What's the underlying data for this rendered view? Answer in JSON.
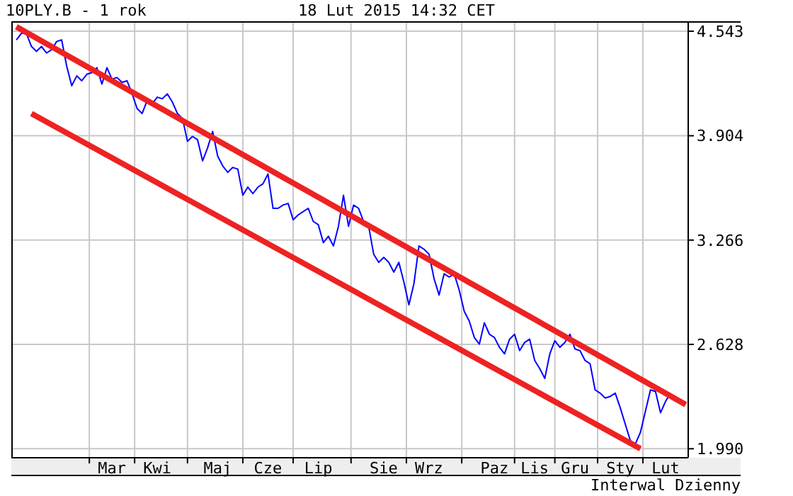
{
  "chart_data": {
    "type": "line",
    "title": "10PLY.B - 1 rok",
    "subtitle": "18 Lut 2015 14:32 CET",
    "annotations": [
      "Interwal Dzienny"
    ],
    "categories": [
      null,
      null,
      null,
      null,
      null,
      null,
      null,
      null,
      null,
      null,
      null,
      null,
      null,
      null,
      null,
      null,
      null,
      null,
      null,
      "Mar",
      null,
      null,
      null,
      null,
      null,
      null,
      null,
      null,
      "Kwi",
      null,
      null,
      null,
      null,
      null,
      null,
      null,
      null,
      null,
      null,
      null,
      "Maj",
      null,
      null,
      null,
      null,
      null,
      null,
      null,
      null,
      null,
      "Cze",
      null,
      null,
      null,
      null,
      null,
      null,
      null,
      null,
      null,
      "Lip",
      null,
      null,
      null,
      null,
      null,
      null,
      null,
      null,
      null,
      null,
      null,
      null,
      "Sie",
      null,
      null,
      null,
      null,
      null,
      null,
      null,
      null,
      "Wrz",
      null,
      null,
      null,
      null,
      null,
      null,
      null,
      null,
      null,
      null,
      null,
      null,
      "Paz",
      null,
      null,
      null,
      null,
      null,
      null,
      null,
      "Lis",
      null,
      null,
      null,
      null,
      null,
      null,
      null,
      "Gru",
      null,
      null,
      null,
      null,
      null,
      null,
      null,
      null,
      "Sty",
      null,
      null,
      null,
      null,
      null,
      null,
      null,
      null,
      "Lut",
      null,
      null,
      null,
      null
    ],
    "series": [
      {
        "color": "#0000ff",
        "values": [
          4.49,
          4.53,
          4.53,
          4.45,
          4.42,
          4.45,
          4.41,
          4.43,
          4.48,
          4.49,
          4.33,
          4.21,
          4.27,
          4.24,
          4.28,
          4.29,
          4.32,
          4.22,
          4.32,
          4.25,
          4.26,
          4.23,
          4.24,
          4.16,
          4.07,
          4.04,
          4.12,
          4.1,
          4.14,
          4.13,
          4.16,
          4.11,
          4.04,
          4.01,
          3.87,
          3.9,
          3.88,
          3.75,
          3.83,
          3.93,
          3.78,
          3.72,
          3.68,
          3.71,
          3.7,
          3.54,
          3.59,
          3.55,
          3.59,
          3.61,
          3.67,
          3.46,
          3.46,
          3.48,
          3.49,
          3.39,
          3.42,
          3.44,
          3.46,
          3.38,
          3.36,
          3.25,
          3.29,
          3.23,
          3.35,
          3.54,
          3.35,
          3.48,
          3.46,
          3.38,
          3.35,
          3.18,
          3.13,
          3.16,
          3.13,
          3.07,
          3.13,
          3.01,
          2.87,
          3.0,
          3.23,
          3.21,
          3.18,
          3.03,
          2.93,
          3.06,
          3.04,
          3.06,
          2.96,
          2.83,
          2.77,
          2.67,
          2.63,
          2.76,
          2.69,
          2.67,
          2.61,
          2.57,
          2.66,
          2.69,
          2.59,
          2.64,
          2.66,
          2.53,
          2.48,
          2.42,
          2.57,
          2.65,
          2.61,
          2.64,
          2.69,
          2.6,
          2.59,
          2.53,
          2.51,
          2.35,
          2.33,
          2.3,
          2.31,
          2.33,
          2.24,
          2.14,
          2.04,
          2.02,
          2.09,
          2.22,
          2.35,
          2.34,
          2.21,
          2.28,
          2.33,
          null,
          null,
          null
        ]
      },
      {
        "type": "line",
        "color": "#ee2222",
        "values": [
          4.57,
          null,
          null,
          null,
          null,
          null,
          null,
          null,
          null,
          null,
          null,
          null,
          null,
          null,
          null,
          null,
          null,
          null,
          null,
          null,
          null,
          null,
          null,
          null,
          null,
          null,
          null,
          null,
          null,
          null,
          null,
          null,
          null,
          null,
          null,
          null,
          null,
          null,
          null,
          null,
          null,
          null,
          null,
          null,
          null,
          null,
          null,
          null,
          null,
          null,
          null,
          null,
          null,
          null,
          null,
          null,
          null,
          null,
          null,
          null,
          null,
          null,
          null,
          null,
          null,
          null,
          null,
          null,
          null,
          null,
          null,
          null,
          null,
          null,
          null,
          null,
          null,
          null,
          null,
          null,
          null,
          null,
          null,
          null,
          null,
          null,
          null,
          null,
          null,
          null,
          null,
          null,
          null,
          null,
          null,
          null,
          null,
          null,
          null,
          null,
          null,
          null,
          null,
          null,
          null,
          null,
          null,
          null,
          null,
          null,
          null,
          null,
          null,
          null,
          null,
          null,
          null,
          null,
          null,
          null,
          null,
          null,
          null,
          null,
          null,
          null,
          null,
          null,
          null,
          null,
          null,
          null,
          null,
          2.26
        ]
      },
      {
        "type": "line",
        "color": "#ee2222",
        "values": [
          null,
          null,
          null,
          4.04,
          null,
          null,
          null,
          null,
          null,
          null,
          null,
          null,
          null,
          null,
          null,
          null,
          null,
          null,
          null,
          null,
          null,
          null,
          null,
          null,
          null,
          null,
          null,
          null,
          null,
          null,
          null,
          null,
          null,
          null,
          null,
          null,
          null,
          null,
          null,
          null,
          null,
          null,
          null,
          null,
          null,
          null,
          null,
          null,
          null,
          null,
          null,
          null,
          null,
          null,
          null,
          null,
          null,
          null,
          null,
          null,
          null,
          null,
          null,
          null,
          null,
          null,
          null,
          null,
          null,
          null,
          null,
          null,
          null,
          null,
          null,
          null,
          null,
          null,
          null,
          null,
          null,
          null,
          null,
          null,
          null,
          null,
          null,
          null,
          null,
          null,
          null,
          null,
          null,
          null,
          null,
          null,
          null,
          null,
          null,
          null,
          null,
          null,
          null,
          null,
          null,
          null,
          null,
          null,
          null,
          null,
          null,
          null,
          null,
          null,
          null,
          null,
          null,
          null,
          null,
          null,
          null,
          null,
          null,
          null,
          1.99,
          null,
          null,
          null,
          null,
          null,
          null,
          null,
          null,
          null
        ]
      }
    ],
    "ylim": [
      1.935,
      4.604
    ],
    "yticks": [
      4.543,
      3.904,
      3.266,
      2.628,
      {
        "value": 1.99,
        "label": "1.990"
      }
    ],
    "grid": true,
    "marker": "none",
    "line_style": "solid"
  }
}
